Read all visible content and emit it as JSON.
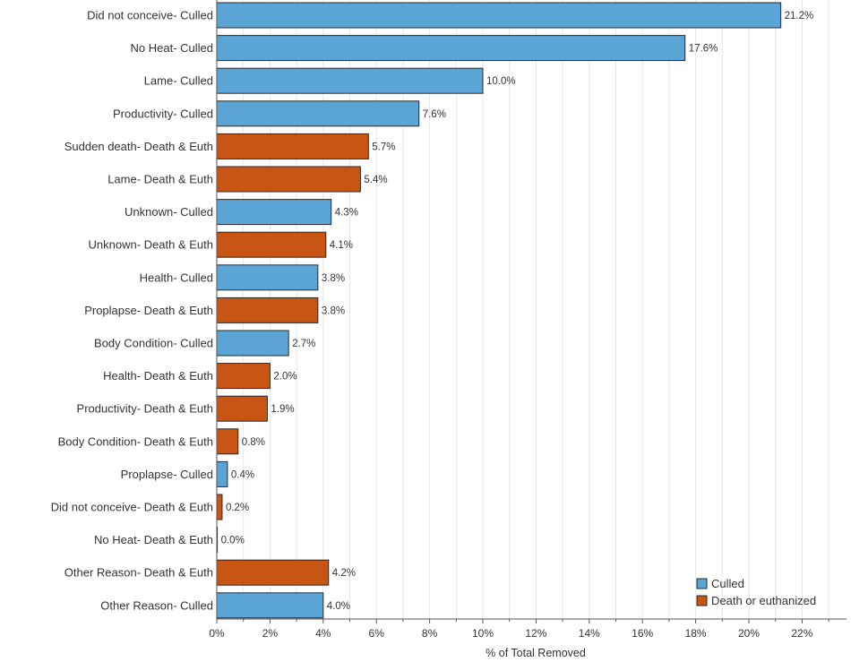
{
  "chart_data": {
    "type": "bar",
    "orientation": "horizontal",
    "xlabel": "% of Total Removed",
    "ylabel": "",
    "xlim": [
      0,
      23
    ],
    "x_ticks": [
      "0%",
      "2%",
      "4%",
      "6%",
      "8%",
      "10%",
      "12%",
      "14%",
      "16%",
      "18%",
      "20%",
      "22%"
    ],
    "grid": "vertical",
    "legend_position": "bottom-right",
    "colors": {
      "Culled": "#5aa5d6",
      "Death or euthanized": "#c95514",
      "bar_edge": "#2a2a2a",
      "grid": "#e6e6e6"
    },
    "series": [
      {
        "name": "Culled"
      },
      {
        "name": "Death or euthanized"
      }
    ],
    "bars": [
      {
        "category": "Did not conceive- Culled",
        "value": 21.2,
        "label": "21.2%",
        "series": "Culled"
      },
      {
        "category": "No Heat- Culled",
        "value": 17.6,
        "label": "17.6%",
        "series": "Culled"
      },
      {
        "category": "Lame- Culled",
        "value": 10.0,
        "label": "10.0%",
        "series": "Culled"
      },
      {
        "category": "Productivity- Culled",
        "value": 7.6,
        "label": "7.6%",
        "series": "Culled"
      },
      {
        "category": "Sudden death- Death & Euth",
        "value": 5.7,
        "label": "5.7%",
        "series": "Death or euthanized"
      },
      {
        "category": "Lame- Death & Euth",
        "value": 5.4,
        "label": "5.4%",
        "series": "Death or euthanized"
      },
      {
        "category": "Unknown- Culled",
        "value": 4.3,
        "label": "4.3%",
        "series": "Culled"
      },
      {
        "category": "Unknown- Death & Euth",
        "value": 4.1,
        "label": "4.1%",
        "series": "Death or euthanized"
      },
      {
        "category": "Health- Culled",
        "value": 3.8,
        "label": "3.8%",
        "series": "Culled"
      },
      {
        "category": "Proplapse- Death & Euth",
        "value": 3.8,
        "label": "3.8%",
        "series": "Death or euthanized"
      },
      {
        "category": "Body Condition- Culled",
        "value": 2.7,
        "label": "2.7%",
        "series": "Culled"
      },
      {
        "category": "Health- Death & Euth",
        "value": 2.0,
        "label": "2.0%",
        "series": "Death or euthanized"
      },
      {
        "category": "Productivity- Death & Euth",
        "value": 1.9,
        "label": "1.9%",
        "series": "Death or euthanized"
      },
      {
        "category": "Body Condition- Death & Euth",
        "value": 0.8,
        "label": "0.8%",
        "series": "Death or euthanized"
      },
      {
        "category": "Proplapse- Culled",
        "value": 0.4,
        "label": "0.4%",
        "series": "Culled"
      },
      {
        "category": "Did not conceive- Death & Euth",
        "value": 0.2,
        "label": "0.2%",
        "series": "Death or euthanized"
      },
      {
        "category": "No Heat- Death & Euth",
        "value": 0.0,
        "label": "0.0%",
        "series": "Death or euthanized"
      },
      {
        "category": "Other Reason- Death & Euth",
        "value": 4.2,
        "label": "4.2%",
        "series": "Death or euthanized"
      },
      {
        "category": "Other Reason- Culled",
        "value": 4.0,
        "label": "4.0%",
        "series": "Culled"
      }
    ]
  }
}
